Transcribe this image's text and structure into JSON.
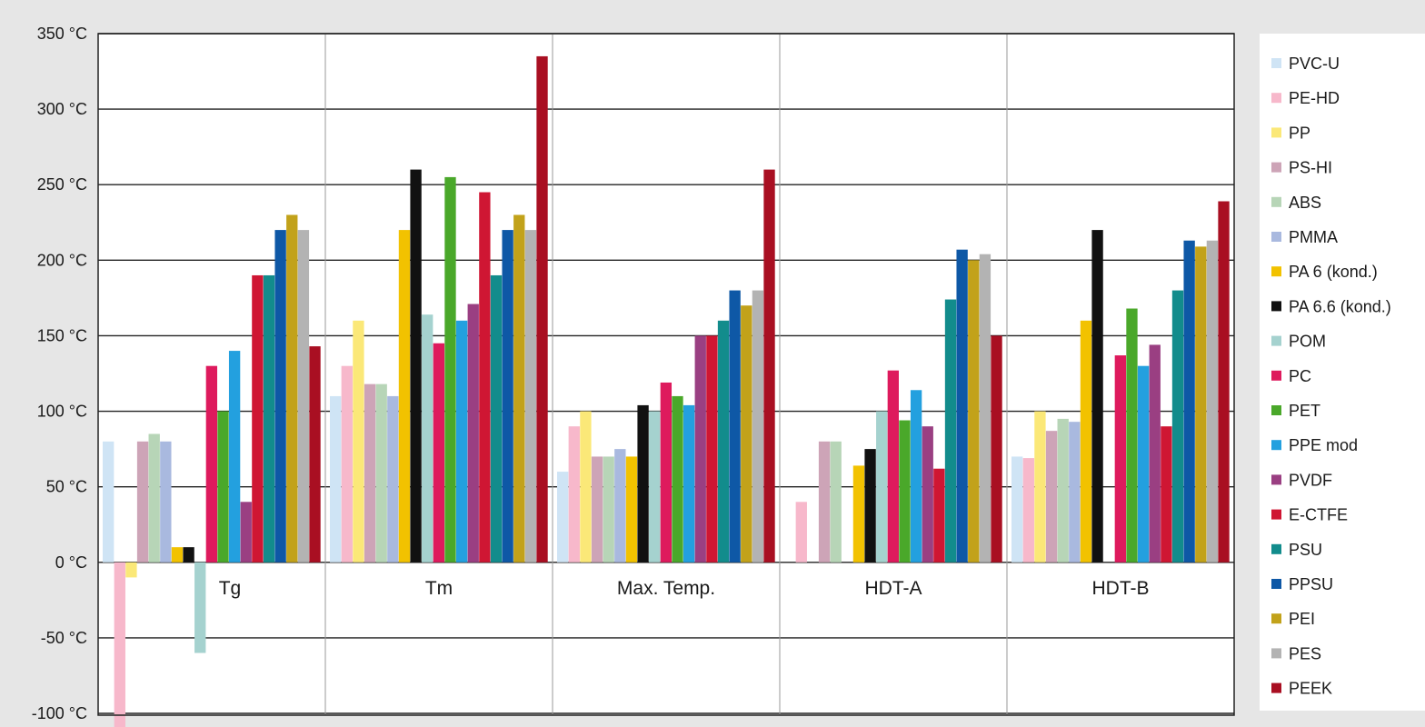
{
  "chart_data": {
    "type": "bar",
    "title": "",
    "xlabel": "",
    "ylabel": "",
    "ylim": [
      -100,
      350
    ],
    "yticks": [
      "350 °C",
      "300 °C",
      "250 °C",
      "200 °C",
      "150 °C",
      "100 °C",
      "50 °C",
      "0 °C",
      "-50 °C",
      "-100 °C"
    ],
    "ytick_values": [
      350,
      300,
      250,
      200,
      150,
      100,
      50,
      0,
      -50,
      -100
    ],
    "categories": [
      "Tg",
      "Tm",
      "Max. Temp.",
      "HDT-A",
      "HDT-B"
    ],
    "grid": true,
    "legend_position": "right",
    "series": [
      {
        "name": "PVC-U",
        "color": "#cfe4f5",
        "values": [
          80,
          110,
          60,
          null,
          70
        ]
      },
      {
        "name": "PE-HD",
        "color": "#f7b8cb",
        "values": [
          -110,
          130,
          90,
          40,
          69
        ]
      },
      {
        "name": "PP",
        "color": "#fbe878",
        "values": [
          -10,
          160,
          100,
          null,
          100
        ]
      },
      {
        "name": "PS-HI",
        "color": "#cda4b7",
        "values": [
          80,
          118,
          70,
          80,
          87
        ]
      },
      {
        "name": "ABS",
        "color": "#b7d5b7",
        "values": [
          85,
          118,
          70,
          80,
          95
        ]
      },
      {
        "name": "PMMA",
        "color": "#a9b9df",
        "values": [
          80,
          110,
          75,
          null,
          93
        ]
      },
      {
        "name": "PA 6 (kond.)",
        "color": "#f2c200",
        "values": [
          10,
          220,
          70,
          64,
          160
        ]
      },
      {
        "name": "PA 6.6 (kond.)",
        "color": "#111111",
        "values": [
          10,
          260,
          104,
          75,
          220
        ]
      },
      {
        "name": "POM",
        "color": "#a5d2cf",
        "values": [
          -60,
          164,
          100,
          100,
          null
        ]
      },
      {
        "name": "PC",
        "color": "#de1a5d",
        "values": [
          130,
          145,
          119,
          127,
          137
        ]
      },
      {
        "name": "PET",
        "color": "#4aa82a",
        "values": [
          100,
          255,
          110,
          94,
          168
        ]
      },
      {
        "name": "PPE mod",
        "color": "#23a0df",
        "values": [
          140,
          160,
          104,
          114,
          130
        ]
      },
      {
        "name": "PVDF",
        "color": "#9a3f82",
        "values": [
          40,
          171,
          150,
          90,
          144
        ]
      },
      {
        "name": "E-CTFE",
        "color": "#cf1633",
        "values": [
          190,
          245,
          150,
          62,
          90
        ]
      },
      {
        "name": "PSU",
        "color": "#128c8c",
        "values": [
          190,
          190,
          160,
          174,
          180
        ]
      },
      {
        "name": "PPSU",
        "color": "#0e58a6",
        "values": [
          220,
          220,
          180,
          207,
          213
        ]
      },
      {
        "name": "PEI",
        "color": "#c2a21a",
        "values": [
          230,
          230,
          170,
          200,
          209
        ]
      },
      {
        "name": "PES",
        "color": "#b3b3b3",
        "values": [
          220,
          220,
          180,
          204,
          213
        ]
      },
      {
        "name": "PEEK",
        "color": "#a90f22",
        "values": [
          143,
          335,
          260,
          150,
          239
        ]
      }
    ]
  }
}
